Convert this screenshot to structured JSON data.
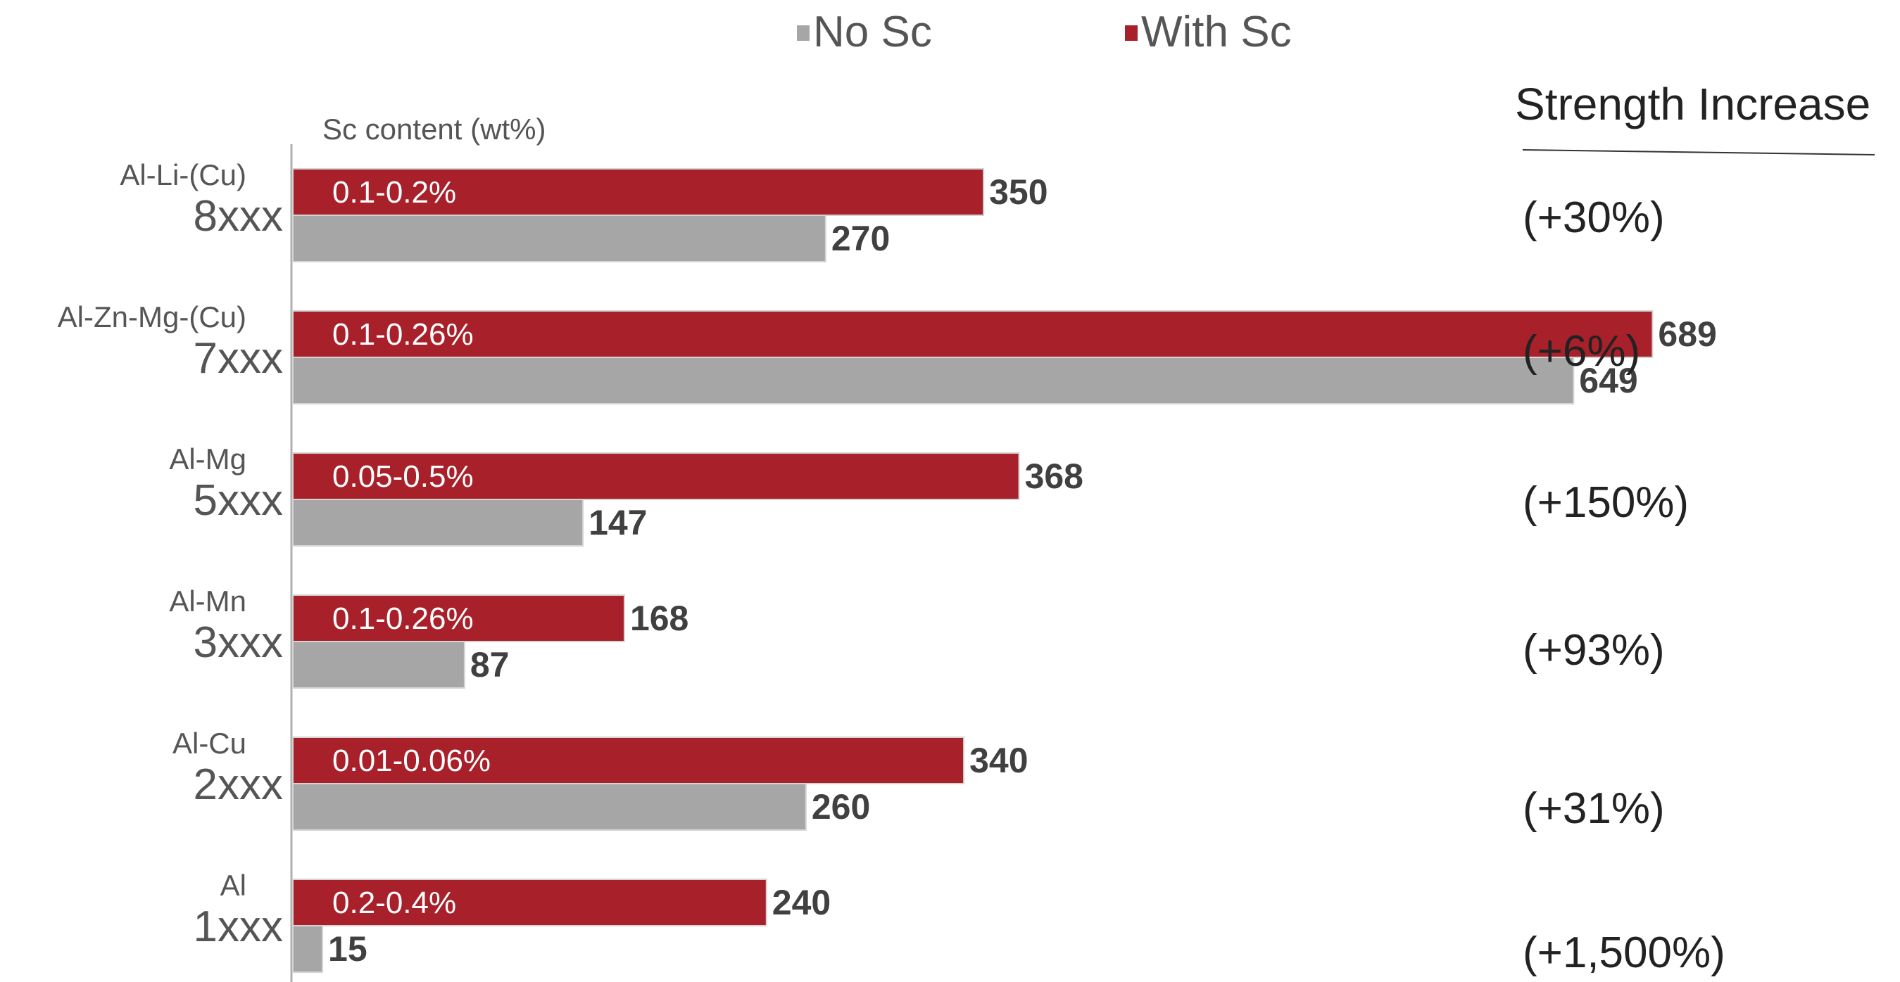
{
  "chart_data": {
    "type": "bar",
    "orientation": "horizontal",
    "axis_title": "Sc content (wt%)",
    "legend": [
      {
        "name": "No Sc",
        "color": "#a6a6a6"
      },
      {
        "name": "With Sc",
        "color": "#a8202a"
      }
    ],
    "legend_position": "top",
    "grid": false,
    "xlim": [
      0,
      700
    ],
    "categories": [
      {
        "family": "Al-Li-(Cu)",
        "code": "8xxx",
        "sc_content": "0.1-0.2%",
        "no_sc": 270,
        "with_sc": 350,
        "increase": "(+30%)"
      },
      {
        "family": "Al-Zn-Mg-(Cu)",
        "code": "7xxx",
        "sc_content": "0.1-0.26%",
        "no_sc": 649,
        "with_sc": 689,
        "increase": "(+6%)"
      },
      {
        "family": "Al-Mg",
        "code": "5xxx",
        "sc_content": "0.05-0.5%",
        "no_sc": 147,
        "with_sc": 368,
        "increase": "(+150%)"
      },
      {
        "family": "Al-Mn",
        "code": "3xxx",
        "sc_content": "0.1-0.26%",
        "no_sc": 87,
        "with_sc": 168,
        "increase": "(+93%)"
      },
      {
        "family": "Al-Cu",
        "code": "2xxx",
        "sc_content": "0.01-0.06%",
        "no_sc": 260,
        "with_sc": 340,
        "increase": "(+31%)"
      },
      {
        "family": "Al",
        "code": "1xxx",
        "sc_content": "0.2-0.4%",
        "no_sc": 15,
        "with_sc": 240,
        "increase": "(+1,500%)"
      }
    ],
    "side_column_title": "Strength Increase"
  }
}
